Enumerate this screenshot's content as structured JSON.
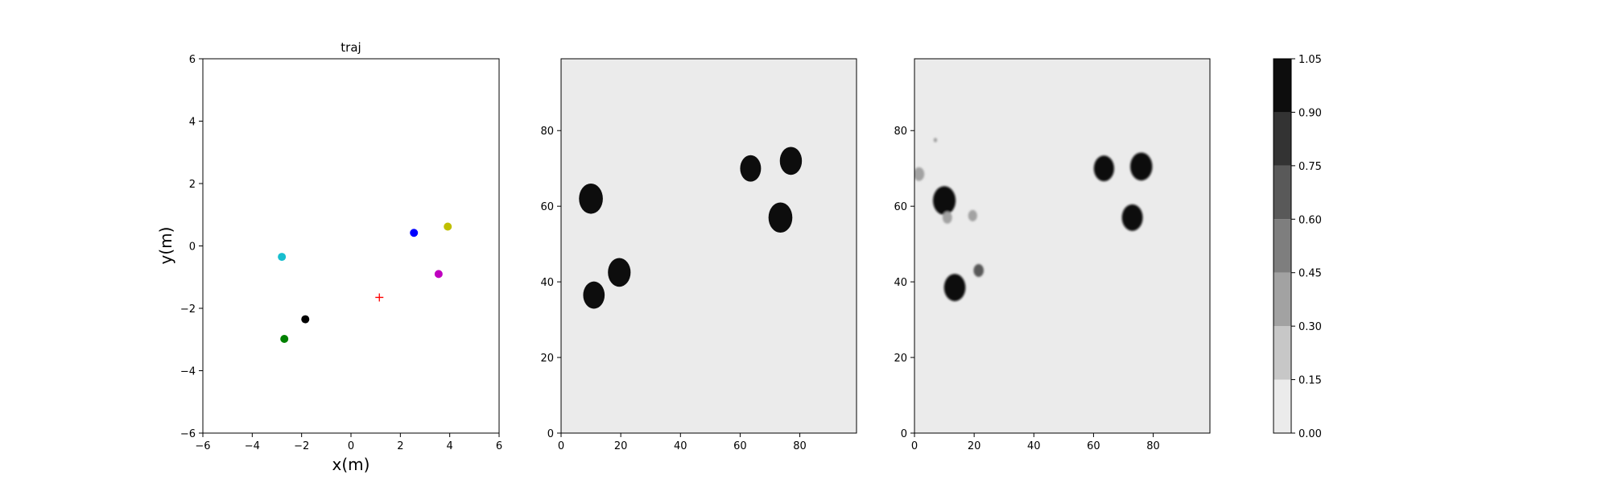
{
  "chart_data": [
    {
      "type": "scatter",
      "title": "traj",
      "xlabel": "x(m)",
      "ylabel": "y(m)",
      "xlim": [
        -6,
        6
      ],
      "ylim": [
        -6,
        6
      ],
      "xticks": [
        -6,
        -4,
        -2,
        0,
        2,
        4,
        6
      ],
      "yticks": [
        -6,
        -4,
        -2,
        0,
        2,
        4,
        6
      ],
      "grid": false,
      "points": [
        {
          "x": -2.8,
          "y": -0.35,
          "color": "#17becf",
          "marker": "circle"
        },
        {
          "x": 2.55,
          "y": 0.42,
          "color": "#0000ff",
          "marker": "circle"
        },
        {
          "x": 3.92,
          "y": 0.62,
          "color": "#bfbf00",
          "marker": "circle"
        },
        {
          "x": 3.55,
          "y": -0.9,
          "color": "#bf00bf",
          "marker": "circle"
        },
        {
          "x": -1.85,
          "y": -2.35,
          "color": "#000000",
          "marker": "circle"
        },
        {
          "x": -2.7,
          "y": -2.98,
          "color": "#008000",
          "marker": "circle"
        },
        {
          "x": 1.15,
          "y": -1.65,
          "color": "#ff0000",
          "marker": "plus"
        }
      ]
    },
    {
      "type": "heatmap",
      "xlim": [
        0,
        99
      ],
      "ylim": [
        0,
        99
      ],
      "xticks": [
        0,
        20,
        40,
        60,
        80
      ],
      "yticks": [
        0,
        20,
        40,
        60,
        80
      ],
      "background_level": 0,
      "blobs": [
        {
          "cx": 10,
          "cy": 62,
          "r": 4,
          "level": 1
        },
        {
          "cx": 19.5,
          "cy": 42.5,
          "r": 3.8,
          "level": 1
        },
        {
          "cx": 11,
          "cy": 36.5,
          "r": 3.6,
          "level": 1
        },
        {
          "cx": 63.5,
          "cy": 70,
          "r": 3.5,
          "level": 1
        },
        {
          "cx": 77,
          "cy": 72,
          "r": 3.7,
          "level": 1
        },
        {
          "cx": 73.5,
          "cy": 57,
          "r": 4,
          "level": 1
        }
      ]
    },
    {
      "type": "heatmap",
      "xlim": [
        0,
        99
      ],
      "ylim": [
        0,
        99
      ],
      "xticks": [
        0,
        20,
        40,
        60,
        80
      ],
      "yticks": [
        0,
        20,
        40,
        60,
        80
      ],
      "background_level": 0,
      "blobs": [
        {
          "cx": 10,
          "cy": 61.5,
          "r": 3.8,
          "level": 1
        },
        {
          "cx": 11,
          "cy": 57,
          "r": 1.6,
          "level": 0.35
        },
        {
          "cx": 13.5,
          "cy": 38.5,
          "r": 3.6,
          "level": 1
        },
        {
          "cx": 63.5,
          "cy": 70,
          "r": 3.4,
          "level": 1
        },
        {
          "cx": 76,
          "cy": 70.5,
          "r": 3.7,
          "level": 1
        },
        {
          "cx": 73,
          "cy": 57,
          "r": 3.5,
          "level": 1
        },
        {
          "cx": 1.5,
          "cy": 68.5,
          "r": 1.8,
          "level": 0.3
        },
        {
          "cx": 19.5,
          "cy": 57.5,
          "r": 1.5,
          "level": 0.35
        },
        {
          "cx": 21.5,
          "cy": 43,
          "r": 1.7,
          "level": 0.65
        },
        {
          "cx": 7,
          "cy": 77.5,
          "r": 0.6,
          "level": 0.3
        }
      ]
    },
    {
      "type": "colorbar",
      "levels": [
        0.0,
        0.15,
        0.3,
        0.45,
        0.6,
        0.75,
        0.9,
        1.05
      ],
      "tick_labels": [
        "0.00",
        "0.15",
        "0.30",
        "0.45",
        "0.60",
        "0.75",
        "0.90",
        "1.05"
      ],
      "colors": [
        "#ebebeb",
        "#c7c7c7",
        "#a2a2a2",
        "#7e7e7e",
        "#595959",
        "#333333",
        "#0d0d0d"
      ]
    }
  ]
}
